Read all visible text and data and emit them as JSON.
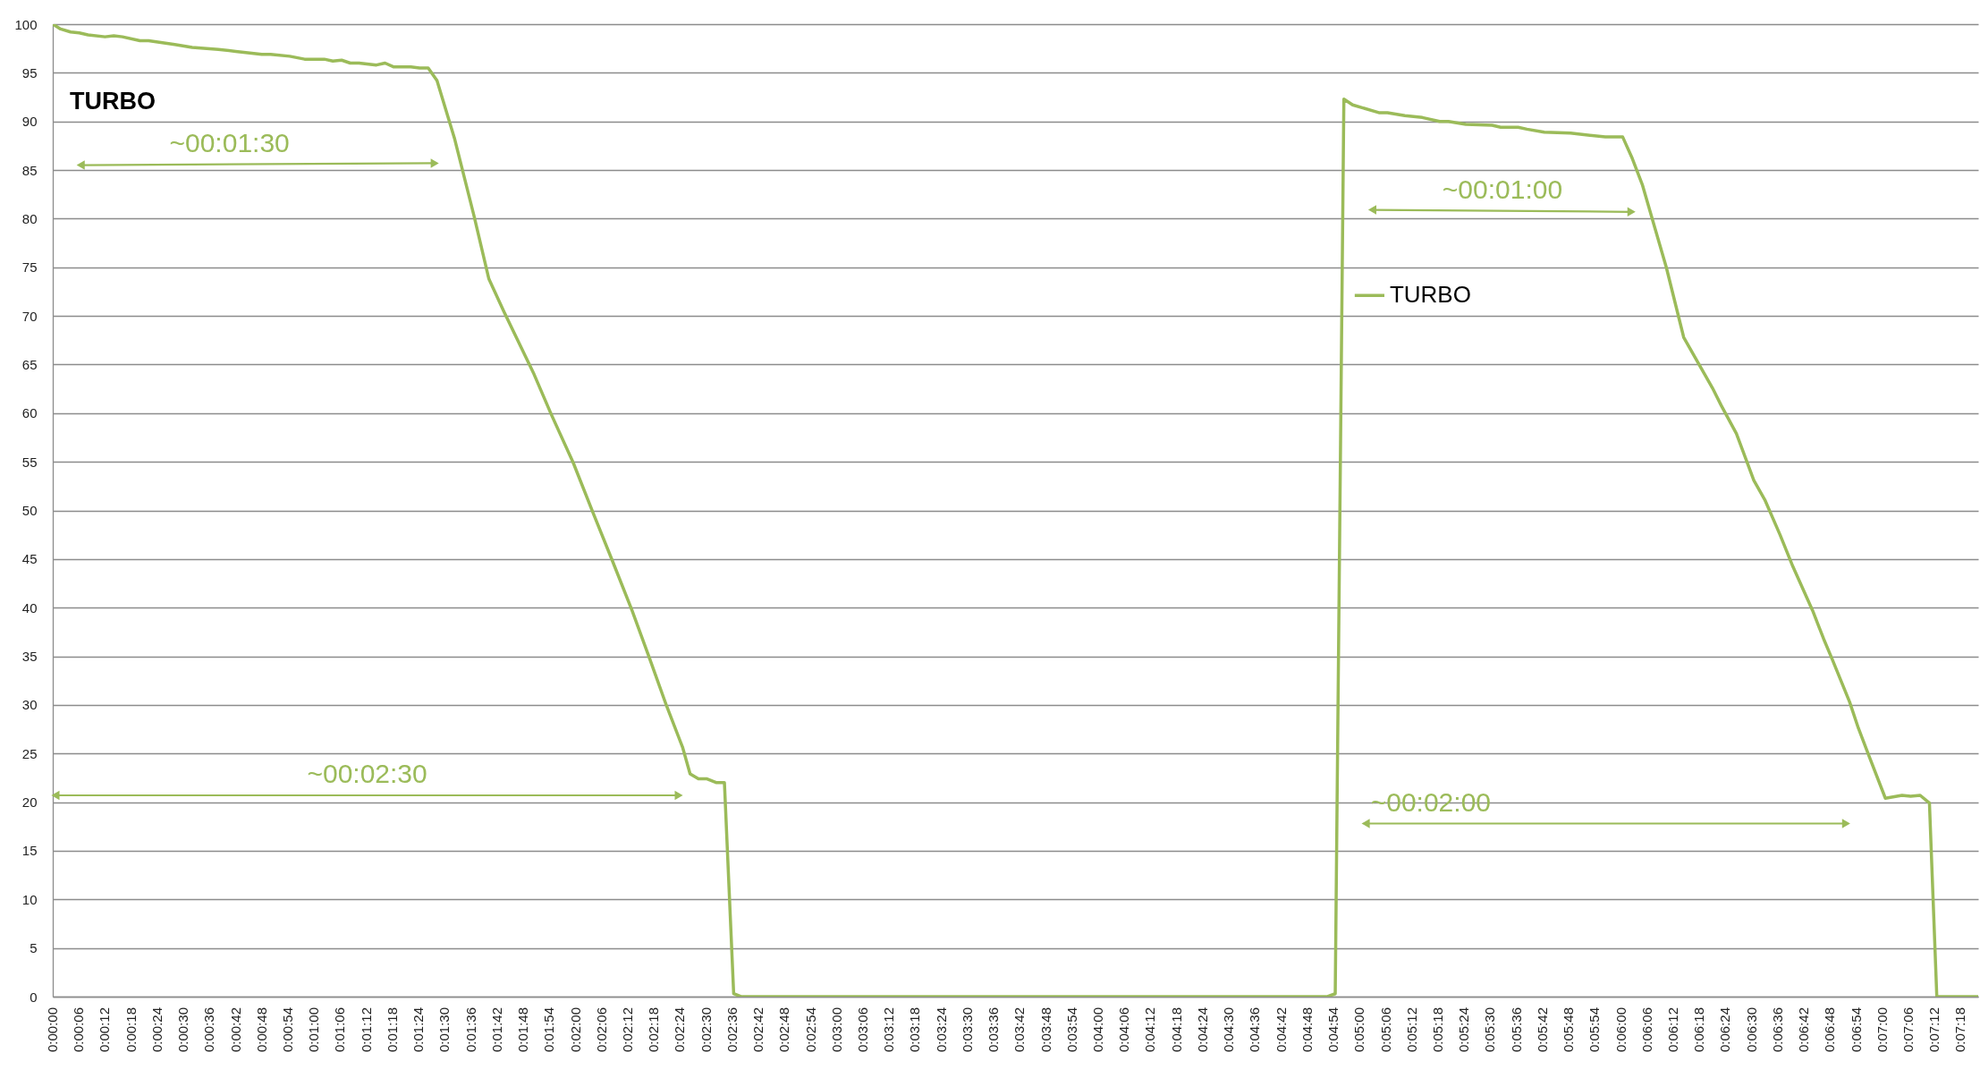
{
  "chart_data": {
    "type": "line",
    "title": "TURBO",
    "x": [
      0,
      0.0005,
      0.00114,
      0.00169,
      0.00225,
      0.00333,
      0.00389,
      0.00444,
      0.00556,
      0.00611,
      0.00778,
      0.00889,
      0.01056,
      0.01167,
      0.01333,
      0.01389,
      0.01511,
      0.01606,
      0.01731,
      0.01786,
      0.01842,
      0.01897,
      0.01953,
      0.02064,
      0.02119,
      0.02175,
      0.02283,
      0.02339,
      0.02394,
      0.0245,
      0.02561,
      0.02686,
      0.02781,
      0.02878,
      0.03069,
      0.03178,
      0.03319,
      0.03444,
      0.03569,
      0.03694,
      0.03803,
      0.03914,
      0.04017,
      0.04064,
      0.04117,
      0.04172,
      0.04233,
      0.04283,
      0.04342,
      0.04389,
      0.08128,
      0.08178,
      0.08233,
      0.08289,
      0.08456,
      0.08511,
      0.08622,
      0.08733,
      0.08844,
      0.089,
      0.09011,
      0.09178,
      0.09233,
      0.09344,
      0.094,
      0.09511,
      0.09678,
      0.09789,
      0.099,
      0.10011,
      0.10072,
      0.10136,
      0.10289,
      0.104,
      0.10583,
      0.10639,
      0.10736,
      0.10847,
      0.10917,
      0.11014,
      0.11097,
      0.11222,
      0.11292,
      0.11347,
      0.11458,
      0.11514,
      0.11583,
      0.11686,
      0.11792,
      0.11847,
      0.11908,
      0.11967,
      0.12014,
      0.12278
    ],
    "series": [
      {
        "name": "TURBO",
        "color": "#9bbb59",
        "values": [
          100,
          99.5,
          99.2,
          99.1,
          98.9,
          98.7,
          98.8,
          98.7,
          98.3,
          98.3,
          97.9,
          97.6,
          97.4,
          97.2,
          96.9,
          96.9,
          96.7,
          96.4,
          96.4,
          96.2,
          96.3,
          96.0,
          96.0,
          95.8,
          96.0,
          95.6,
          95.6,
          95.5,
          95.5,
          94.2,
          88.3,
          80.3,
          73.8,
          70.4,
          64.0,
          59.9,
          54.9,
          49.8,
          44.8,
          39.7,
          34.9,
          29.9,
          25.6,
          22.9,
          22.4,
          22.4,
          22.0,
          22.0,
          0.3,
          0,
          0,
          0.3,
          92.3,
          91.7,
          90.9,
          90.9,
          90.6,
          90.4,
          90.0,
          90.0,
          89.7,
          89.6,
          89.4,
          89.4,
          89.2,
          88.9,
          88.8,
          88.6,
          88.4,
          88.4,
          86.2,
          83.5,
          75.0,
          67.8,
          62.6,
          60.8,
          57.9,
          53.1,
          51.1,
          47.5,
          44.2,
          39.7,
          36.8,
          34.7,
          30.3,
          27.6,
          24.7,
          20.4,
          20.7,
          20.6,
          20.7,
          19.9,
          0,
          0
        ]
      },
      {
        "color": "#9bbb59",
        "marker": "triangle",
        "x": [
          0.00178,
          0.02436
        ],
        "values": [
          85.5,
          85.7
        ]
      },
      {
        "color": "#9bbb59",
        "marker": "triangle",
        "x": [
          0.00017,
          0.03992
        ],
        "values": [
          20.7,
          20.7
        ]
      },
      {
        "color": "#9bbb59",
        "marker": "triangle",
        "x": [
          0.08414,
          0.10067
        ],
        "values": [
          80.9,
          80.7
        ]
      },
      {
        "color": "#9bbb59",
        "marker": "triangle",
        "x": [
          0.08372,
          0.11436
        ],
        "values": [
          17.8,
          17.8
        ]
      }
    ],
    "annotations": [
      {
        "text": "~00:01:30",
        "x": 0.01127,
        "y": 85.6
      },
      {
        "text": "~00:02:30",
        "x": 0.02005,
        "y": 20.7
      },
      {
        "text": "~00:01:00",
        "x": 0.09244,
        "y": 80.8
      },
      {
        "text": "~00:02:00",
        "x": 0.08787,
        "y": 17.8
      }
    ],
    "xlim": [
      0,
      0.12278
    ],
    "xticks": [
      {
        "value": 0,
        "label": "0:00:00"
      },
      {
        "value": 0.001667,
        "label": "0:00:06"
      },
      {
        "value": 0.003333,
        "label": "0:00:12"
      },
      {
        "value": 0.005,
        "label": "0:00:18"
      },
      {
        "value": 0.006667,
        "label": "0:00:24"
      },
      {
        "value": 0.008333,
        "label": "0:00:30"
      },
      {
        "value": 0.01,
        "label": "0:00:36"
      },
      {
        "value": 0.011667,
        "label": "0:00:42"
      },
      {
        "value": 0.013333,
        "label": "0:00:48"
      },
      {
        "value": 0.015,
        "label": "0:00:54"
      },
      {
        "value": 0.016667,
        "label": "0:01:00"
      },
      {
        "value": 0.018333,
        "label": "0:01:06"
      },
      {
        "value": 0.02,
        "label": "0:01:12"
      },
      {
        "value": 0.021667,
        "label": "0:01:18"
      },
      {
        "value": 0.023333,
        "label": "0:01:24"
      },
      {
        "value": 0.025,
        "label": "0:01:30"
      },
      {
        "value": 0.026667,
        "label": "0:01:36"
      },
      {
        "value": 0.028333,
        "label": "0:01:42"
      },
      {
        "value": 0.03,
        "label": "0:01:48"
      },
      {
        "value": 0.031667,
        "label": "0:01:54"
      },
      {
        "value": 0.033333,
        "label": "0:02:00"
      },
      {
        "value": 0.035,
        "label": "0:02:06"
      },
      {
        "value": 0.036667,
        "label": "0:02:12"
      },
      {
        "value": 0.038333,
        "label": "0:02:18"
      },
      {
        "value": 0.04,
        "label": "0:02:24"
      },
      {
        "value": 0.041667,
        "label": "0:02:30"
      },
      {
        "value": 0.043333,
        "label": "0:02:36"
      },
      {
        "value": 0.045,
        "label": "0:02:42"
      },
      {
        "value": 0.046667,
        "label": "0:02:48"
      },
      {
        "value": 0.048333,
        "label": "0:02:54"
      },
      {
        "value": 0.05,
        "label": "0:03:00"
      },
      {
        "value": 0.051667,
        "label": "0:03:06"
      },
      {
        "value": 0.053333,
        "label": "0:03:12"
      },
      {
        "value": 0.055,
        "label": "0:03:18"
      },
      {
        "value": 0.056667,
        "label": "0:03:24"
      },
      {
        "value": 0.058333,
        "label": "0:03:30"
      },
      {
        "value": 0.06,
        "label": "0:03:36"
      },
      {
        "value": 0.061667,
        "label": "0:03:42"
      },
      {
        "value": 0.063333,
        "label": "0:03:48"
      },
      {
        "value": 0.065,
        "label": "0:03:54"
      },
      {
        "value": 0.066667,
        "label": "0:04:00"
      },
      {
        "value": 0.068333,
        "label": "0:04:06"
      },
      {
        "value": 0.07,
        "label": "0:04:12"
      },
      {
        "value": 0.071667,
        "label": "0:04:18"
      },
      {
        "value": 0.073333,
        "label": "0:04:24"
      },
      {
        "value": 0.075,
        "label": "0:04:30"
      },
      {
        "value": 0.076667,
        "label": "0:04:36"
      },
      {
        "value": 0.078333,
        "label": "0:04:42"
      },
      {
        "value": 0.08,
        "label": "0:04:48"
      },
      {
        "value": 0.081667,
        "label": "0:04:54"
      },
      {
        "value": 0.083333,
        "label": "0:05:00"
      },
      {
        "value": 0.085,
        "label": "0:05:06"
      },
      {
        "value": 0.086667,
        "label": "0:05:12"
      },
      {
        "value": 0.088333,
        "label": "0:05:18"
      },
      {
        "value": 0.09,
        "label": "0:05:24"
      },
      {
        "value": 0.091667,
        "label": "0:05:30"
      },
      {
        "value": 0.093333,
        "label": "0:05:36"
      },
      {
        "value": 0.095,
        "label": "0:05:42"
      },
      {
        "value": 0.096667,
        "label": "0:05:48"
      },
      {
        "value": 0.098333,
        "label": "0:05:54"
      },
      {
        "value": 0.1,
        "label": "0:06:00"
      },
      {
        "value": 0.101667,
        "label": "0:06:06"
      },
      {
        "value": 0.103333,
        "label": "0:06:12"
      },
      {
        "value": 0.105,
        "label": "0:06:18"
      },
      {
        "value": 0.106667,
        "label": "0:06:24"
      },
      {
        "value": 0.108333,
        "label": "0:06:30"
      },
      {
        "value": 0.11,
        "label": "0:06:36"
      },
      {
        "value": 0.111667,
        "label": "0:06:42"
      },
      {
        "value": 0.113333,
        "label": "0:06:48"
      },
      {
        "value": 0.115,
        "label": "0:06:54"
      },
      {
        "value": 0.116667,
        "label": "0:07:00"
      },
      {
        "value": 0.118333,
        "label": "0:07:06"
      },
      {
        "value": 0.12,
        "label": "0:07:12"
      },
      {
        "value": 0.121667,
        "label": "0:07:18"
      }
    ],
    "ylim": [
      0,
      100
    ],
    "yticks": [
      0,
      5,
      10,
      15,
      20,
      25,
      30,
      35,
      40,
      45,
      50,
      55,
      60,
      65,
      70,
      75,
      80,
      85,
      90,
      95,
      100
    ],
    "grid": "y",
    "legend": "top right"
  }
}
